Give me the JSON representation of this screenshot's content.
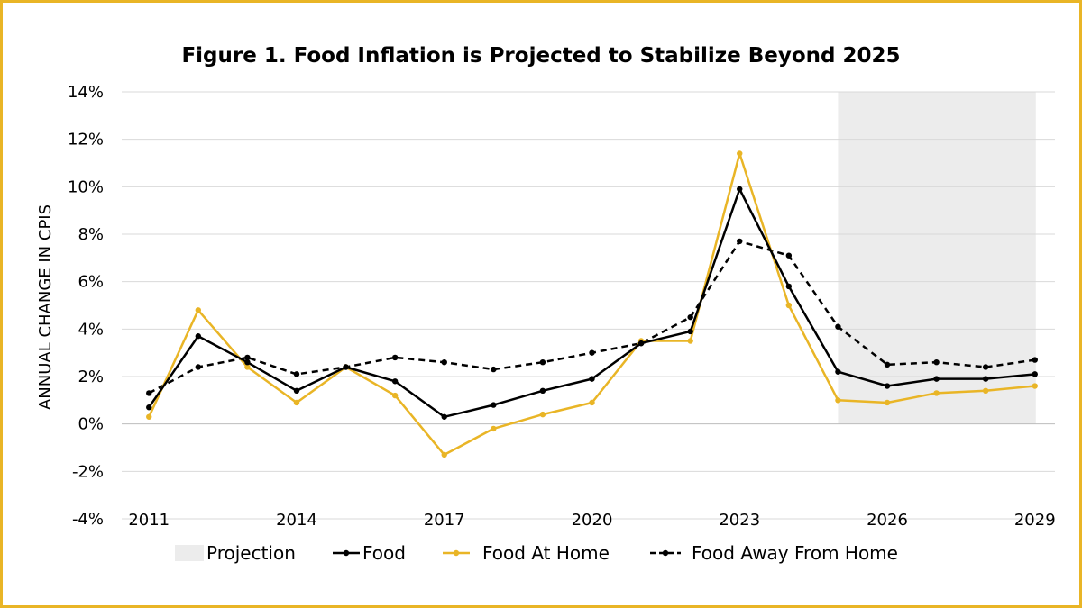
{
  "chart_data": {
    "type": "line",
    "title": "Figure 1. Food Inflation is Projected to Stabilize Beyond 2025",
    "xlabel": "",
    "ylabel": "ANNUAL CHANGE IN CPIS",
    "x": [
      2011,
      2012,
      2013,
      2014,
      2015,
      2016,
      2017,
      2018,
      2019,
      2020,
      2021,
      2022,
      2023,
      2024,
      2025,
      2026,
      2027,
      2028,
      2029
    ],
    "x_tick_labels": [
      "2011",
      "2014",
      "2017",
      "2020",
      "2023",
      "2026",
      "2029"
    ],
    "y_tick_labels": [
      "14%",
      "12%",
      "10%",
      "8%",
      "6%",
      "4%",
      "2%",
      "0%",
      "-2%",
      "-4%"
    ],
    "ylim": [
      -4,
      14
    ],
    "grid": "horizontal",
    "projection": {
      "label": "Projection",
      "from": 2025,
      "to": 2029,
      "color": "#ececec"
    },
    "series": [
      {
        "name": "Food",
        "color": "#000000",
        "style": "solid",
        "values": [
          0.7,
          3.7,
          2.6,
          1.4,
          2.4,
          1.8,
          0.3,
          0.8,
          1.4,
          1.9,
          3.4,
          3.9,
          9.9,
          5.8,
          2.2,
          1.6,
          1.9,
          1.9,
          2.1
        ]
      },
      {
        "name": "Food At Home",
        "color": "#e9b526",
        "style": "solid",
        "values": [
          0.3,
          4.8,
          2.4,
          0.9,
          2.4,
          1.2,
          -1.3,
          -0.2,
          0.4,
          0.9,
          3.5,
          3.5,
          11.4,
          5.0,
          1.0,
          0.9,
          1.3,
          1.4,
          1.6
        ]
      },
      {
        "name": "Food Away From Home",
        "color": "#000000",
        "style": "dashed",
        "values": [
          1.3,
          2.4,
          2.8,
          2.1,
          2.4,
          2.8,
          2.6,
          2.3,
          2.6,
          3.0,
          3.4,
          4.5,
          7.7,
          7.1,
          4.1,
          2.5,
          2.6,
          2.4,
          2.7
        ]
      }
    ],
    "legend": {
      "position": "bottom",
      "items": [
        "Projection",
        "Food",
        "Food At Home",
        "Food Away From Home"
      ]
    }
  }
}
